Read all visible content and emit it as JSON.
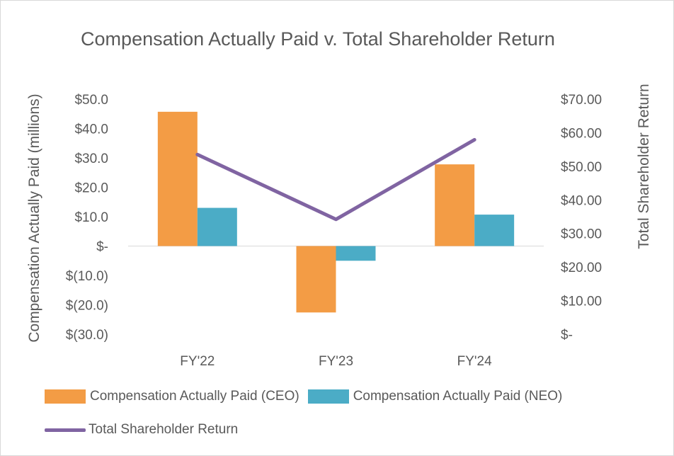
{
  "chart_data": {
    "type": "bar+line",
    "title": "Compensation Actually Paid v. Total Shareholder Return",
    "categories": [
      "FY'22",
      "FY'23",
      "FY'24"
    ],
    "ylabel": "Compensation Actually Paid (millions)",
    "y2label": "Total Shareholder Return",
    "ylim": [
      -30,
      50
    ],
    "y2lim": [
      0,
      70
    ],
    "yticks": [
      "$50.0",
      "$40.0",
      "$30.0",
      "$20.0",
      "$10.0",
      "$-",
      "$(10.0)",
      "$(20.0)",
      "$(30.0)"
    ],
    "y2ticks": [
      "$70.00",
      "$60.00",
      "$50.00",
      "$40.00",
      "$30.00",
      "$20.00",
      "$10.00",
      "$-"
    ],
    "series": [
      {
        "name": "Compensation Actually Paid (CEO)",
        "kind": "bar",
        "axis": "left",
        "color": "#F39C45",
        "values": [
          45.7,
          -22.6,
          27.8
        ]
      },
      {
        "name": "Compensation Actually Paid (NEO)",
        "kind": "bar",
        "axis": "left",
        "color": "#4BACC6",
        "values": [
          13.0,
          -5.0,
          10.7
        ]
      },
      {
        "name": "Total Shareholder Return",
        "kind": "line",
        "axis": "right",
        "color": "#8064A2",
        "values": [
          53.5,
          34.2,
          57.9
        ]
      }
    ],
    "legend_position": "bottom"
  }
}
